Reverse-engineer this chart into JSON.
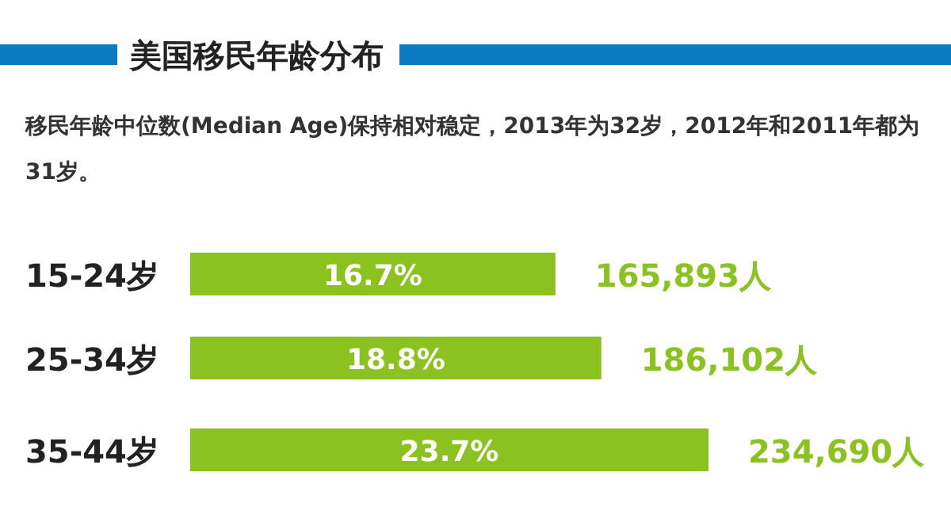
{
  "chart_data": {
    "type": "bar",
    "orientation": "horizontal",
    "title": "美国移民年龄分布",
    "subtitle": "移民年龄中位数(Median  Age)保持相对稳定，2013年为32岁，2012年和2011年都为31岁。",
    "categories": [
      "15-24岁",
      "25-34岁",
      "35-44岁"
    ],
    "values": [
      16.7,
      18.8,
      23.7
    ],
    "value_labels": [
      "16.7%",
      "18.8%",
      "23.7%"
    ],
    "color": "#8cc220",
    "annotations": [
      {
        "text": "165,893人",
        "x": 16.7,
        "y": "15-24岁"
      },
      {
        "text": "186,102人",
        "x": 18.8,
        "y": "25-34岁"
      },
      {
        "text": "234,690人",
        "x": 23.7,
        "y": "35-44岁"
      }
    ]
  }
}
